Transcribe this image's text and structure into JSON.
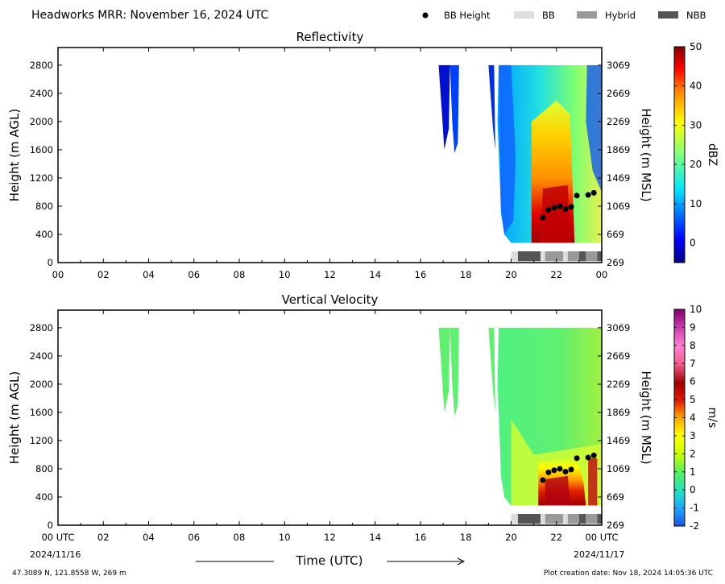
{
  "header": {
    "title": "Headworks MRR:  November 16, 2024 UTC",
    "legend": [
      {
        "label": "BB Height",
        "marker": "dot",
        "color": "#000000"
      },
      {
        "label": "BB",
        "marker": "box",
        "color": "#dddddd"
      },
      {
        "label": "Hybrid",
        "marker": "box",
        "color": "#999999"
      },
      {
        "label": "NBB",
        "marker": "box",
        "color": "#555555"
      }
    ]
  },
  "footer": {
    "location": "47.3089 N, 121.8558 W, 269 m",
    "creation_date": "Plot creation date: Nov 18, 2024 14:05:36 UTC",
    "time_axis_label": "Time (UTC)",
    "start_time": "00 UTC",
    "start_date": "2024/11/16",
    "end_time": "00 UTC",
    "end_date": "2024/11/17"
  },
  "chart_data": [
    {
      "type": "heatmap",
      "title": "Reflectivity",
      "ylabel": "Height (m AGL)",
      "ylabel_right": "Height (m MSL)",
      "colorbar_label": "dBZ",
      "xlim": [
        0,
        24
      ],
      "ylim": [
        0,
        3050
      ],
      "x_ticks": [
        "00",
        "02",
        "04",
        "06",
        "08",
        "10",
        "12",
        "14",
        "16",
        "18",
        "20",
        "22",
        "00"
      ],
      "x_tick_values": [
        0,
        2,
        4,
        6,
        8,
        10,
        12,
        14,
        16,
        18,
        20,
        22,
        24
      ],
      "y_ticks": [
        0,
        400,
        800,
        1200,
        1600,
        2000,
        2400,
        2800
      ],
      "y_ticks_right": [
        269,
        669,
        1069,
        1469,
        1869,
        2269,
        2669,
        3069
      ],
      "colorbar": {
        "range": [
          -5,
          50
        ],
        "ticks": [
          0,
          10,
          20,
          30,
          40,
          50
        ],
        "colormap": "jet"
      },
      "series": [
        {
          "values": [
            {
              "x": 21.4,
              "y": 640
            },
            {
              "x": 21.65,
              "y": 750
            },
            {
              "x": 21.9,
              "y": 780
            },
            {
              "x": 22.15,
              "y": 800
            },
            {
              "x": 22.4,
              "y": 760
            },
            {
              "x": 22.65,
              "y": 790
            },
            {
              "x": 22.9,
              "y": 950
            },
            {
              "x": 23.4,
              "y": 960
            },
            {
              "x": 23.65,
              "y": 990
            }
          ]
        }
      ],
      "bb_type_bar": [
        {
          "start": 20.0,
          "end": 20.3,
          "class": "BB"
        },
        {
          "start": 20.3,
          "end": 21.3,
          "class": "NBB"
        },
        {
          "start": 21.3,
          "end": 21.5,
          "class": "BB"
        },
        {
          "start": 21.5,
          "end": 22.3,
          "class": "Hybrid"
        },
        {
          "start": 22.3,
          "end": 22.5,
          "class": "BB"
        },
        {
          "start": 22.5,
          "end": 23.0,
          "class": "Hybrid"
        },
        {
          "start": 23.0,
          "end": 23.3,
          "class": "NBB"
        },
        {
          "start": 23.3,
          "end": 23.8,
          "class": "Hybrid"
        },
        {
          "start": 23.8,
          "end": 24.0,
          "class": "NBB"
        }
      ]
    },
    {
      "type": "heatmap",
      "title": "Vertical Velocity",
      "ylabel": "Height (m AGL)",
      "ylabel_right": "Height (m MSL)",
      "colorbar_label": "m/s",
      "xlim": [
        0,
        24
      ],
      "ylim": [
        0,
        3050
      ],
      "x_ticks": [
        "00 UTC",
        "02",
        "04",
        "06",
        "08",
        "10",
        "12",
        "14",
        "16",
        "18",
        "20",
        "22",
        "00 UTC"
      ],
      "x_tick_values": [
        0,
        2,
        4,
        6,
        8,
        10,
        12,
        14,
        16,
        18,
        20,
        22,
        24
      ],
      "y_ticks": [
        0,
        400,
        800,
        1200,
        1600,
        2000,
        2400,
        2800
      ],
      "y_ticks_right": [
        269,
        669,
        1069,
        1469,
        1869,
        2269,
        2669,
        3069
      ],
      "colorbar": {
        "range": [
          -2,
          10
        ],
        "ticks": [
          -2,
          -1,
          0,
          1,
          2,
          3,
          4,
          5,
          6,
          7,
          8,
          9,
          10
        ],
        "colormap": "velocity"
      },
      "series": [
        {
          "values": [
            {
              "x": 21.4,
              "y": 640
            },
            {
              "x": 21.65,
              "y": 750
            },
            {
              "x": 21.9,
              "y": 780
            },
            {
              "x": 22.15,
              "y": 800
            },
            {
              "x": 22.4,
              "y": 760
            },
            {
              "x": 22.65,
              "y": 790
            },
            {
              "x": 22.9,
              "y": 950
            },
            {
              "x": 23.4,
              "y": 960
            },
            {
              "x": 23.65,
              "y": 990
            }
          ]
        }
      ],
      "bb_type_bar": [
        {
          "start": 20.0,
          "end": 20.3,
          "class": "BB"
        },
        {
          "start": 20.3,
          "end": 21.3,
          "class": "NBB"
        },
        {
          "start": 21.3,
          "end": 21.5,
          "class": "BB"
        },
        {
          "start": 21.5,
          "end": 22.3,
          "class": "Hybrid"
        },
        {
          "start": 22.3,
          "end": 22.5,
          "class": "BB"
        },
        {
          "start": 22.5,
          "end": 23.0,
          "class": "Hybrid"
        },
        {
          "start": 23.0,
          "end": 23.3,
          "class": "NBB"
        },
        {
          "start": 23.3,
          "end": 23.8,
          "class": "Hybrid"
        },
        {
          "start": 23.8,
          "end": 24.0,
          "class": "NBB"
        }
      ]
    }
  ]
}
